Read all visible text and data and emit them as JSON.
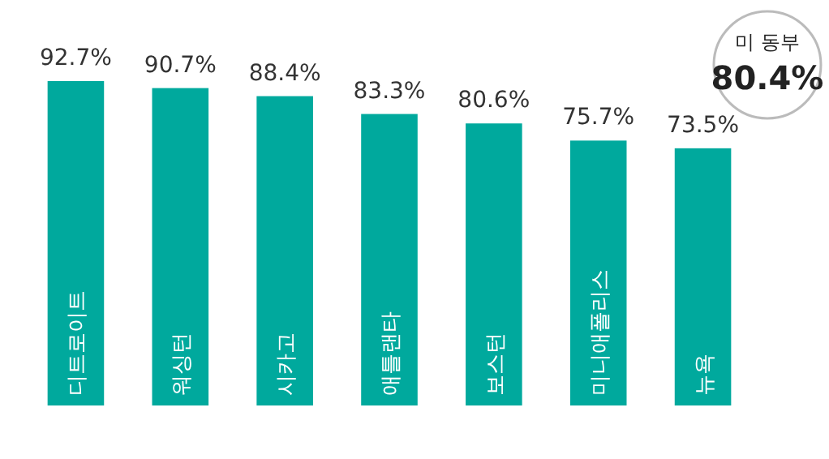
{
  "chart_data": {
    "type": "bar",
    "categories": [
      "디트로이트",
      "워싱턴",
      "시카고",
      "애틀랜타",
      "보스턴",
      "미니애폴리스",
      "뉴욕"
    ],
    "values": [
      92.7,
      90.7,
      88.4,
      83.3,
      80.6,
      75.7,
      73.5
    ],
    "value_labels": [
      "92.7%",
      "90.7%",
      "88.4%",
      "83.3%",
      "80.6%",
      "75.7%",
      "73.5%"
    ],
    "color": "#00a99d",
    "tick_labels": false,
    "annotations": [
      "미 동부",
      "80.4%"
    ]
  }
}
